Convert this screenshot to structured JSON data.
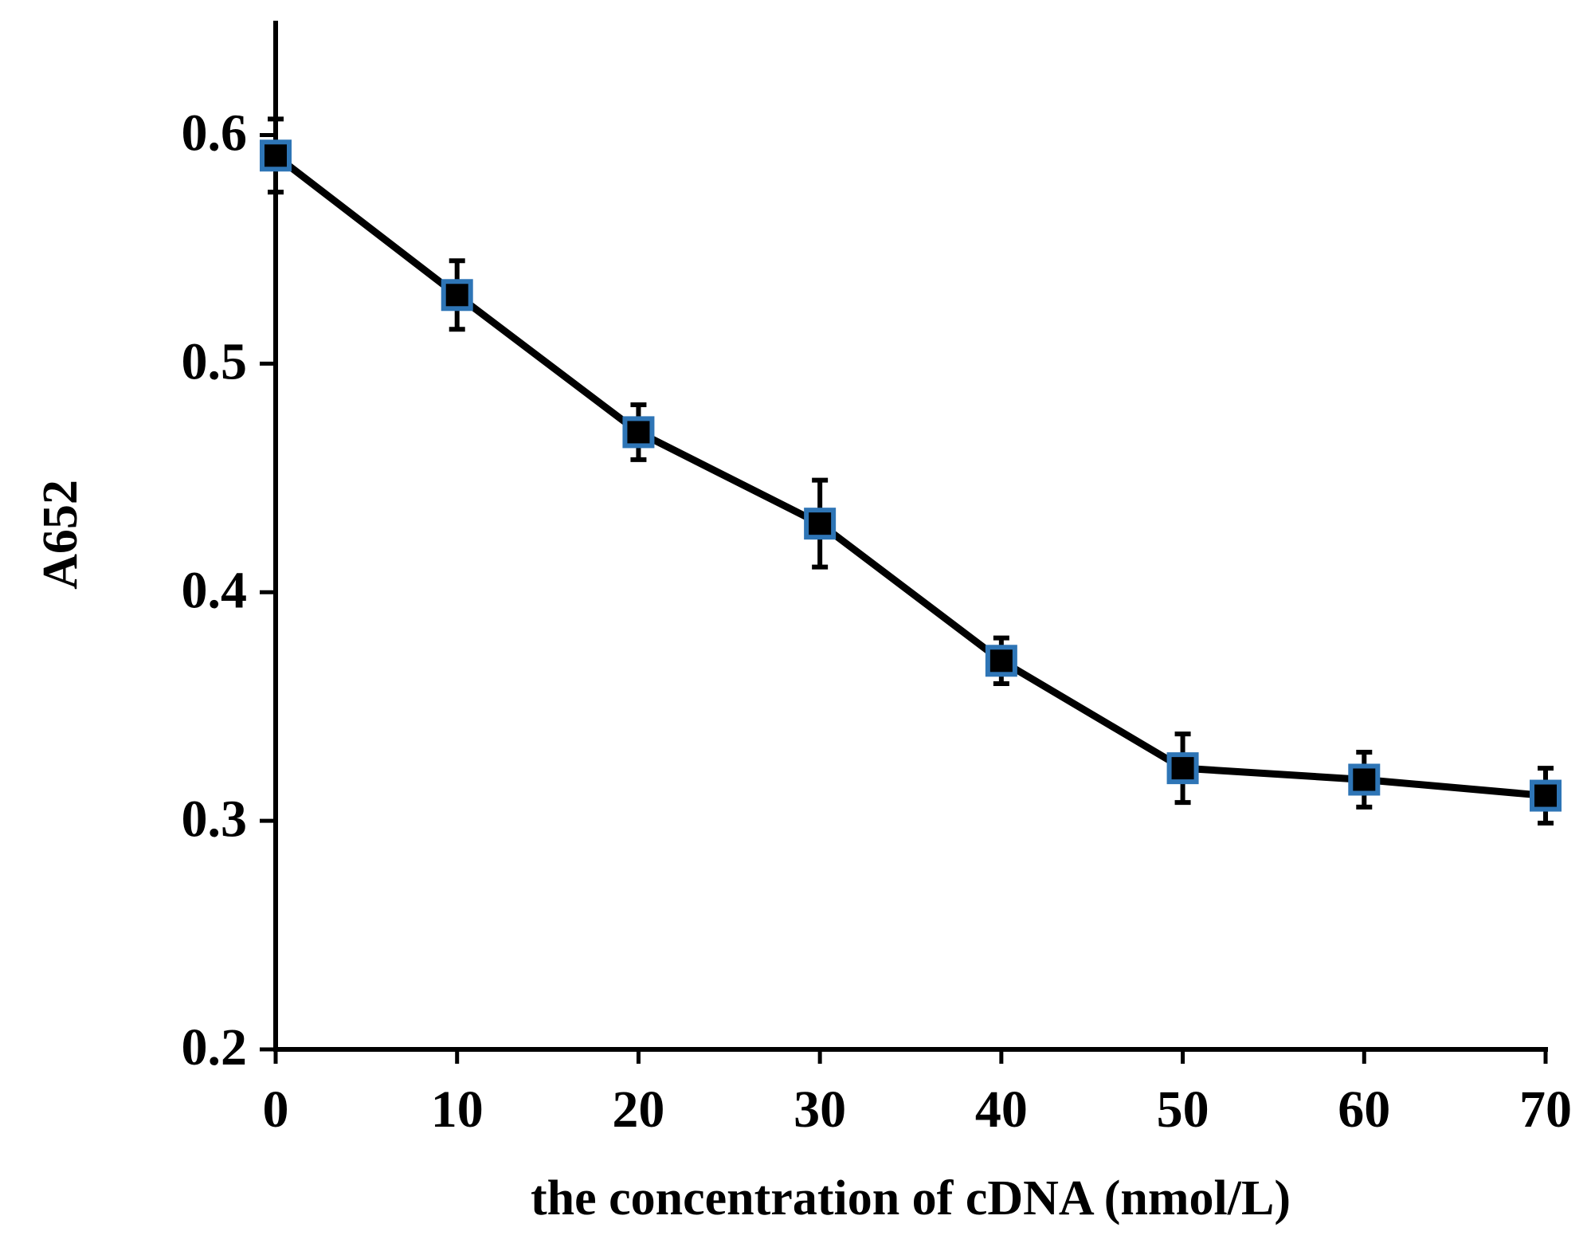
{
  "chart_data": {
    "type": "line",
    "x_label": "the concentration of cDNA (nmol/L)",
    "y_label": "A652",
    "x": [
      0,
      10,
      20,
      30,
      40,
      50,
      60,
      70
    ],
    "series": [
      {
        "color": "#000000",
        "marker_edge_color": "#2e75b6",
        "values": [
          0.591,
          0.53,
          0.47,
          0.43,
          0.37,
          0.323,
          0.318,
          0.311
        ],
        "errors": [
          0.016,
          0.015,
          0.012,
          0.019,
          0.01,
          0.015,
          0.012,
          0.012
        ]
      }
    ],
    "xlim": [
      0,
      70
    ],
    "xticks": [
      0,
      10,
      20,
      30,
      40,
      50,
      60,
      70
    ],
    "ylim": [
      0.2,
      0.65
    ],
    "yticks": [
      {
        "value": 0.2,
        "label": "0.2"
      },
      {
        "value": 0.3,
        "label": "0.3"
      },
      {
        "value": 0.4,
        "label": "0.4"
      },
      {
        "value": 0.5,
        "label": "0.5"
      },
      {
        "value": 0.6,
        "label": "0.6"
      }
    ],
    "grid": false
  }
}
